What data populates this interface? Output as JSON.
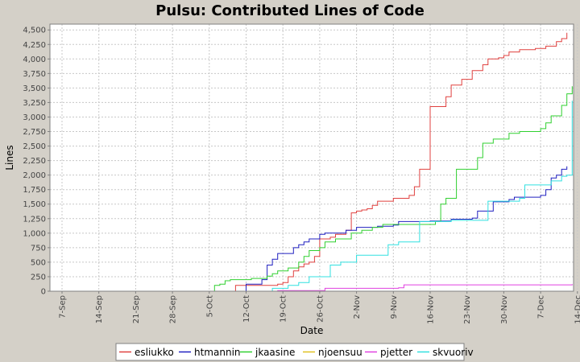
{
  "chart_data": {
    "type": "line",
    "title": "Pulsu: Contributed Lines of Code",
    "xlabel": "Date",
    "ylabel": "Lines",
    "x_ticks": [
      "7-Sep",
      "14-Sep",
      "21-Sep",
      "28-Sep",
      "5-Oct",
      "12-Oct",
      "19-Oct",
      "26-Oct",
      "2-Nov",
      "9-Nov",
      "16-Nov",
      "23-Nov",
      "30-Nov",
      "7-Dec",
      "14-Dec"
    ],
    "y_ticks": [
      "0",
      "250",
      "500",
      "750",
      "1,000",
      "1,250",
      "1,500",
      "1,750",
      "2,000",
      "2,250",
      "2,500",
      "2,750",
      "3,000",
      "3,250",
      "3,500",
      "3,750",
      "4,000",
      "4,250",
      "4,500"
    ],
    "ylim": [
      0,
      4600
    ],
    "grid": true,
    "legend_position": "bottom",
    "series": [
      {
        "name": "esliukko",
        "color": "#e0403f",
        "points": [
          [
            "2007-10-10",
            0
          ],
          [
            "2007-10-10",
            100
          ],
          [
            "2007-10-18",
            120
          ],
          [
            "2007-10-19",
            150
          ],
          [
            "2007-10-20",
            250
          ],
          [
            "2007-10-21",
            350
          ],
          [
            "2007-10-22",
            420
          ],
          [
            "2007-10-23",
            470
          ],
          [
            "2007-10-24",
            500
          ],
          [
            "2007-10-25",
            600
          ],
          [
            "2007-10-26",
            900
          ],
          [
            "2007-10-28",
            930
          ],
          [
            "2007-10-29",
            980
          ],
          [
            "2007-10-31",
            1050
          ],
          [
            "2007-11-01",
            1100
          ],
          [
            "2007-11-01",
            1350
          ],
          [
            "2007-11-02",
            1380
          ],
          [
            "2007-11-03",
            1400
          ],
          [
            "2007-11-04",
            1420
          ],
          [
            "2007-11-05",
            1480
          ],
          [
            "2007-11-06",
            1550
          ],
          [
            "2007-11-09",
            1600
          ],
          [
            "2007-11-12",
            1650
          ],
          [
            "2007-11-13",
            1800
          ],
          [
            "2007-11-14",
            2100
          ],
          [
            "2007-11-16",
            3180
          ],
          [
            "2007-11-19",
            3350
          ],
          [
            "2007-11-20",
            3550
          ],
          [
            "2007-11-22",
            3650
          ],
          [
            "2007-11-24",
            3800
          ],
          [
            "2007-11-26",
            3900
          ],
          [
            "2007-11-27",
            4000
          ],
          [
            "2007-11-29",
            4020
          ],
          [
            "2007-11-30",
            4060
          ],
          [
            "2007-12-01",
            4120
          ],
          [
            "2007-12-03",
            4160
          ],
          [
            "2007-12-06",
            4180
          ],
          [
            "2007-12-08",
            4220
          ],
          [
            "2007-12-10",
            4300
          ],
          [
            "2007-12-11",
            4350
          ],
          [
            "2007-12-12",
            4400
          ],
          [
            "2007-12-12",
            4450
          ]
        ]
      },
      {
        "name": "htmannin",
        "color": "#2020c0",
        "points": [
          [
            "2007-10-12",
            0
          ],
          [
            "2007-10-12",
            120
          ],
          [
            "2007-10-15",
            200
          ],
          [
            "2007-10-16",
            450
          ],
          [
            "2007-10-17",
            550
          ],
          [
            "2007-10-18",
            650
          ],
          [
            "2007-10-21",
            750
          ],
          [
            "2007-10-22",
            800
          ],
          [
            "2007-10-23",
            850
          ],
          [
            "2007-10-24",
            900
          ],
          [
            "2007-10-26",
            980
          ],
          [
            "2007-10-27",
            1000
          ],
          [
            "2007-10-31",
            1050
          ],
          [
            "2007-11-02",
            1100
          ],
          [
            "2007-11-06",
            1120
          ],
          [
            "2007-11-09",
            1140
          ],
          [
            "2007-11-10",
            1200
          ],
          [
            "2007-11-16",
            1210
          ],
          [
            "2007-11-20",
            1240
          ],
          [
            "2007-11-24",
            1260
          ],
          [
            "2007-11-25",
            1380
          ],
          [
            "2007-11-28",
            1540
          ],
          [
            "2007-12-01",
            1580
          ],
          [
            "2007-12-02",
            1620
          ],
          [
            "2007-12-07",
            1650
          ],
          [
            "2007-12-08",
            1750
          ],
          [
            "2007-12-09",
            1950
          ],
          [
            "2007-12-10",
            2000
          ],
          [
            "2007-12-11",
            2100
          ],
          [
            "2007-12-12",
            2150
          ]
        ]
      },
      {
        "name": "jkaasine",
        "color": "#30d030",
        "points": [
          [
            "2007-09-07",
            0
          ],
          [
            "2007-10-05",
            0
          ],
          [
            "2007-10-06",
            100
          ],
          [
            "2007-10-07",
            120
          ],
          [
            "2007-10-08",
            180
          ],
          [
            "2007-10-09",
            200
          ],
          [
            "2007-10-13",
            220
          ],
          [
            "2007-10-16",
            260
          ],
          [
            "2007-10-17",
            300
          ],
          [
            "2007-10-18",
            350
          ],
          [
            "2007-10-20",
            400
          ],
          [
            "2007-10-22",
            500
          ],
          [
            "2007-10-23",
            600
          ],
          [
            "2007-10-24",
            700
          ],
          [
            "2007-10-26",
            750
          ],
          [
            "2007-10-27",
            850
          ],
          [
            "2007-10-29",
            900
          ],
          [
            "2007-11-01",
            1000
          ],
          [
            "2007-11-03",
            1050
          ],
          [
            "2007-11-05",
            1100
          ],
          [
            "2007-11-07",
            1150
          ],
          [
            "2007-11-17",
            1200
          ],
          [
            "2007-11-18",
            1500
          ],
          [
            "2007-11-19",
            1600
          ],
          [
            "2007-11-21",
            2100
          ],
          [
            "2007-11-25",
            2300
          ],
          [
            "2007-11-26",
            2550
          ],
          [
            "2007-11-28",
            2620
          ],
          [
            "2007-12-01",
            2720
          ],
          [
            "2007-12-03",
            2750
          ],
          [
            "2007-12-07",
            2800
          ],
          [
            "2007-12-08",
            2900
          ],
          [
            "2007-12-09",
            3020
          ],
          [
            "2007-12-11",
            3200
          ],
          [
            "2007-12-12",
            3400
          ],
          [
            "2007-12-13",
            3530
          ]
        ]
      },
      {
        "name": "njoensuu",
        "color": "#e0c020",
        "points": [
          [
            "2007-09-07",
            0
          ],
          [
            "2007-12-13",
            0
          ]
        ]
      },
      {
        "name": "pjetter",
        "color": "#e040e0",
        "points": [
          [
            "2007-10-16",
            0
          ],
          [
            "2007-10-18",
            10
          ],
          [
            "2007-10-27",
            50
          ],
          [
            "2007-11-10",
            60
          ],
          [
            "2007-11-11",
            110
          ],
          [
            "2007-12-12",
            110
          ],
          [
            "2007-12-13",
            120
          ]
        ]
      },
      {
        "name": "skvuoriv",
        "color": "#30e0e0",
        "points": [
          [
            "2007-10-15",
            0
          ],
          [
            "2007-10-17",
            50
          ],
          [
            "2007-10-20",
            100
          ],
          [
            "2007-10-22",
            150
          ],
          [
            "2007-10-24",
            250
          ],
          [
            "2007-10-28",
            450
          ],
          [
            "2007-10-30",
            500
          ],
          [
            "2007-11-02",
            620
          ],
          [
            "2007-11-08",
            800
          ],
          [
            "2007-11-10",
            850
          ],
          [
            "2007-11-14",
            1200
          ],
          [
            "2007-11-20",
            1220
          ],
          [
            "2007-11-27",
            1550
          ],
          [
            "2007-12-03",
            1600
          ],
          [
            "2007-12-04",
            1830
          ],
          [
            "2007-12-09",
            1900
          ],
          [
            "2007-12-11",
            1980
          ],
          [
            "2007-12-12",
            2000
          ],
          [
            "2007-12-13",
            3280
          ]
        ]
      }
    ]
  }
}
